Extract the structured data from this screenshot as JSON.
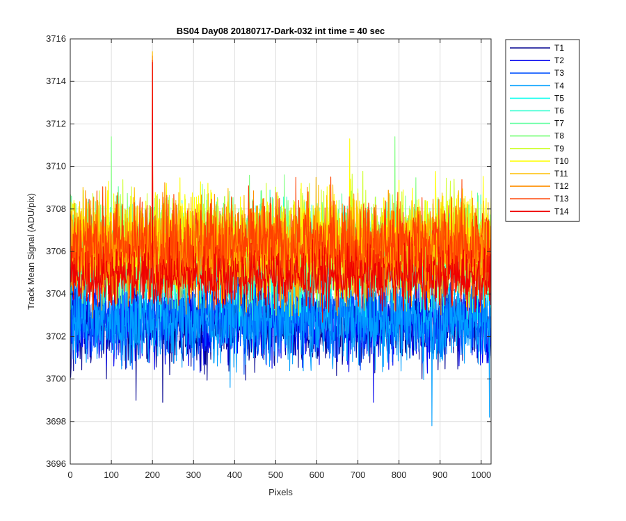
{
  "chart_data": {
    "type": "line",
    "title": "BS04 Day08 20180717-Dark-032 int time = 40 sec",
    "xlabel": "Pixels",
    "ylabel": "Track Mean Signal (ADU/pix)",
    "xlim": [
      0,
      1024
    ],
    "ylim": [
      3696,
      3716
    ],
    "xticks": [
      0,
      100,
      200,
      300,
      400,
      500,
      600,
      700,
      800,
      900,
      1000
    ],
    "yticks": [
      3696,
      3698,
      3700,
      3702,
      3704,
      3706,
      3708,
      3710,
      3712,
      3714,
      3716
    ],
    "grid": true,
    "legend_position": "outside-top-right",
    "series": [
      {
        "name": "T1",
        "color": "#00008F",
        "mean": 3702.6,
        "noise": 1.4,
        "features": [
          {
            "x": 160,
            "y": 3699.0
          },
          {
            "x": 225,
            "y": 3698.9
          }
        ]
      },
      {
        "name": "T2",
        "color": "#0000EF",
        "mean": 3702.8,
        "noise": 1.4,
        "features": [
          {
            "x": 738,
            "y": 3698.9
          }
        ]
      },
      {
        "name": "T3",
        "color": "#0050FF",
        "mean": 3702.9,
        "noise": 1.4,
        "features": []
      },
      {
        "name": "T4",
        "color": "#009FFF",
        "mean": 3702.8,
        "noise": 1.5,
        "features": [
          {
            "x": 880,
            "y": 3697.8
          },
          {
            "x": 1020,
            "y": 3698.2
          }
        ]
      },
      {
        "name": "T5",
        "color": "#10FFEF",
        "mean": 3705.6,
        "noise": 1.6,
        "features": []
      },
      {
        "name": "T6",
        "color": "#2FFFCF",
        "mean": 3705.8,
        "noise": 1.6,
        "features": []
      },
      {
        "name": "T7",
        "color": "#60FFA0",
        "mean": 3706.0,
        "noise": 1.6,
        "features": []
      },
      {
        "name": "T8",
        "color": "#80FF80",
        "mean": 3706.2,
        "noise": 1.7,
        "features": [
          {
            "x": 100,
            "y": 3711.4
          },
          {
            "x": 790,
            "y": 3711.4
          }
        ]
      },
      {
        "name": "T9",
        "color": "#CFFF30",
        "mean": 3706.4,
        "noise": 1.6,
        "features": []
      },
      {
        "name": "T10",
        "color": "#FFFF00",
        "mean": 3706.5,
        "noise": 1.7,
        "features": [
          {
            "x": 680,
            "y": 3711.3
          }
        ]
      },
      {
        "name": "T11",
        "color": "#FFBF00",
        "mean": 3706.2,
        "noise": 1.7,
        "features": [
          {
            "x": 200,
            "y": 3715.4
          }
        ]
      },
      {
        "name": "T12",
        "color": "#FF8F00",
        "mean": 3706.0,
        "noise": 1.7,
        "features": [
          {
            "x": 200,
            "y": 3715.2
          }
        ]
      },
      {
        "name": "T13",
        "color": "#FF4000",
        "mean": 3706.3,
        "noise": 1.6,
        "features": [
          {
            "x": 200,
            "y": 3715.0
          }
        ]
      },
      {
        "name": "T14",
        "color": "#EF0000",
        "mean": 3704.8,
        "noise": 1.0,
        "features": [
          {
            "x": 200,
            "y": 3714.9
          }
        ]
      }
    ]
  }
}
